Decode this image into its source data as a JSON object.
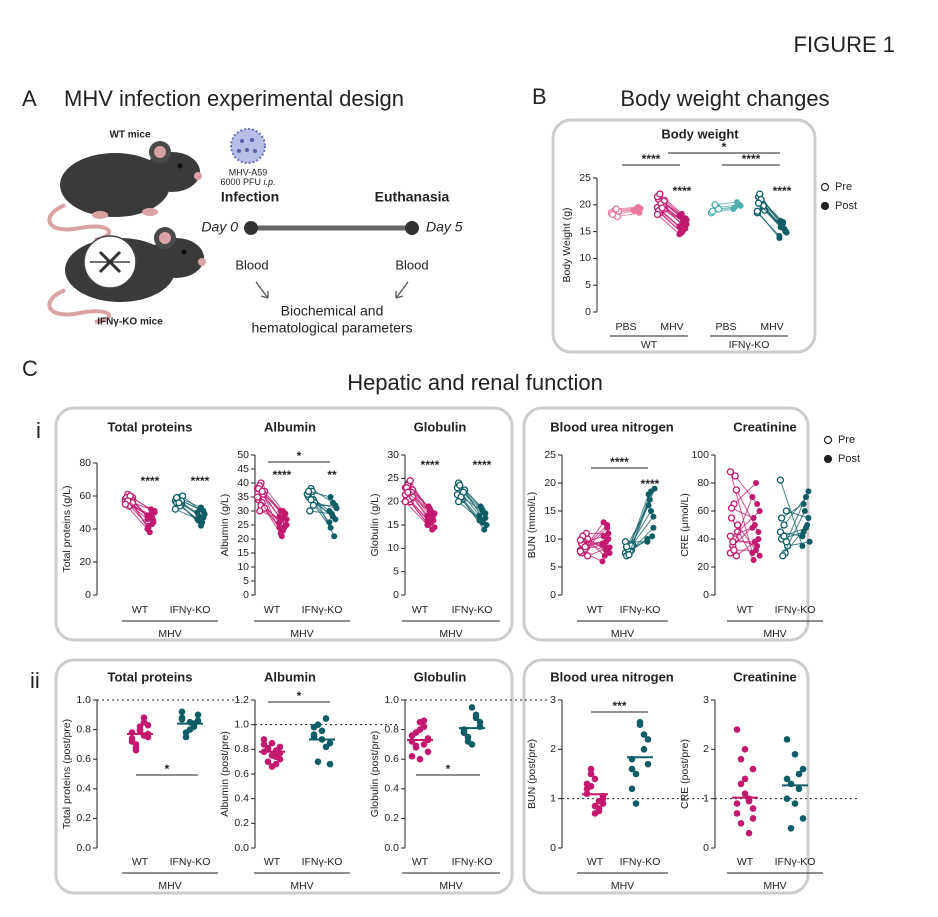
{
  "figure_label": "FIGURE 1",
  "panel_a": {
    "letter": "A",
    "title": "MHV infection experimental design",
    "wt_mice": "WT mice",
    "ko_mice": "IFNγ-KO mice",
    "virus": "MHV-A59",
    "dose": "6000 PFU",
    "route": "i.p.",
    "infection": "Infection",
    "euthanasia": "Euthanasia",
    "day0": "Day 0",
    "day5": "Day 5",
    "blood_start": "Blood",
    "blood_end": "Blood",
    "outcome_line1": "Biochemical and",
    "outcome_line2": "hematological parameters"
  },
  "panel_b": {
    "letter": "B",
    "title": "Body weight changes"
  },
  "panel_c": {
    "letter": "C",
    "title": "Hepatic and renal function",
    "sub_i": "i",
    "sub_ii": "ii",
    "legend": [
      "Pre",
      "Post"
    ]
  },
  "chart_data": [
    {
      "type": "paired",
      "title": "Body weight",
      "ylabel": "Body Weight (g)",
      "ylim": [
        0,
        25
      ],
      "yticks": [
        0,
        5,
        10,
        15,
        20,
        25
      ],
      "categories": [
        "PBS",
        "MHV",
        "PBS",
        "MHV"
      ],
      "supergroups": [
        "WT",
        "IFNγ-KO"
      ],
      "legend": [
        "Pre",
        "Post"
      ],
      "groups": [
        {
          "color": "#e8769f",
          "pre": [
            18.5,
            17.8,
            19.0,
            18.2,
            18.8,
            19.2
          ],
          "post": [
            19.0,
            18.5,
            19.4,
            18.8,
            19.3,
            19.6
          ]
        },
        {
          "color": "#c2186e",
          "pre": [
            19.5,
            20.5,
            18.8,
            21.0,
            19.2,
            20.0,
            18.5,
            21.5,
            19.8,
            20.2,
            18.9,
            20.8,
            19.4,
            22.0,
            18.2
          ],
          "post": [
            16.0,
            17.5,
            15.2,
            17.8,
            16.4,
            16.8,
            14.8,
            18.0,
            15.6,
            16.9,
            15.0,
            17.2,
            16.2,
            18.3,
            14.5
          ]
        },
        {
          "color": "#4fb0b0",
          "pre": [
            18.5,
            19.5,
            20.0,
            18.8,
            19.2
          ],
          "post": [
            19.2,
            20.0,
            20.5,
            19.5,
            19.8
          ]
        },
        {
          "color": "#0d5c66",
          "pre": [
            18.5,
            19.5,
            20.5,
            21.5,
            19.0,
            20.0,
            22.0,
            18.8,
            19.8,
            21.0,
            20.3
          ],
          "post": [
            14.2,
            15.0,
            16.5,
            17.0,
            14.8,
            15.5,
            16.0,
            13.8,
            15.2,
            16.8,
            15.8
          ]
        }
      ],
      "annotations": [
        "****",
        "*",
        "****",
        "****",
        "****"
      ]
    },
    {
      "type": "paired",
      "title": "Total proteins",
      "ylabel": "Total proteins (g/L)",
      "ylim": [
        0,
        80
      ],
      "yticks": [
        0,
        20,
        40,
        60,
        80
      ],
      "categories": [
        "WT",
        "IFNγ-KO"
      ],
      "group_label": "MHV",
      "groups": [
        {
          "color": "#c2186e",
          "pre": [
            58,
            57,
            60,
            56,
            59,
            55,
            61,
            57,
            58,
            54,
            59,
            56,
            60,
            57,
            55
          ],
          "post": [
            48,
            45,
            52,
            42,
            50,
            47,
            38,
            46,
            44,
            49,
            41,
            51,
            43,
            47,
            40
          ]
        },
        {
          "color": "#0d5c66",
          "pre": [
            57,
            55,
            59,
            56,
            60,
            54,
            58,
            52,
            57,
            56,
            59
          ],
          "post": [
            50,
            47,
            53,
            45,
            49,
            44,
            52,
            46,
            51,
            42,
            48
          ]
        }
      ],
      "annotations": [
        "****",
        "****"
      ]
    },
    {
      "type": "paired",
      "title": "Albumin",
      "ylabel": "Albumin (g/L)",
      "ylim": [
        0,
        50
      ],
      "yticks": [
        0,
        5,
        10,
        15,
        20,
        25,
        30,
        35,
        40,
        45,
        50
      ],
      "categories": [
        "WT",
        "IFNγ-KO"
      ],
      "group_label": "MHV",
      "groups": [
        {
          "color": "#c2186e",
          "pre": [
            38,
            36,
            40,
            34,
            37,
            33,
            39,
            35,
            36,
            32,
            38,
            31,
            37,
            30,
            35
          ],
          "post": [
            28,
            25,
            30,
            22,
            27,
            24,
            21,
            26,
            29,
            23,
            30,
            25,
            28,
            27,
            24
          ]
        },
        {
          "color": "#0d5c66",
          "pre": [
            36,
            34,
            38,
            35,
            33,
            37,
            30,
            36,
            32,
            34,
            37
          ],
          "post": [
            30,
            27,
            33,
            24,
            31,
            21,
            29,
            26,
            32,
            28,
            35
          ]
        }
      ],
      "annotations": [
        "****",
        "**",
        "*"
      ]
    },
    {
      "type": "paired",
      "title": "Globulin",
      "ylabel": "Globulin (g/L)",
      "ylim": [
        0,
        30
      ],
      "yticks": [
        0,
        5,
        10,
        15,
        20,
        25,
        30
      ],
      "categories": [
        "WT",
        "IFNγ-KO"
      ],
      "group_label": "MHV",
      "groups": [
        {
          "color": "#c2186e",
          "pre": [
            23,
            22,
            24,
            21,
            22.5,
            20,
            23.5,
            21.5,
            22,
            20.5,
            23,
            21,
            24.5,
            22,
            20
          ],
          "post": [
            17,
            16,
            18,
            15,
            17.5,
            14,
            18.5,
            16,
            17,
            15.5,
            19,
            14.5,
            16.5,
            17.8,
            15
          ]
        },
        {
          "color": "#0d5c66",
          "pre": [
            23,
            22,
            21,
            24,
            22.5,
            20.5,
            23.5,
            21.5,
            22,
            21,
            20
          ],
          "post": [
            17,
            16.5,
            18,
            19,
            15,
            14,
            18.5,
            16,
            17.5,
            15.5,
            16
          ]
        }
      ],
      "annotations": [
        "****",
        "****"
      ]
    },
    {
      "type": "paired",
      "title": "Blood urea nitrogen",
      "ylabel": "BUN (mmol/L)",
      "ylim": [
        0,
        25
      ],
      "yticks": [
        0,
        5,
        10,
        15,
        20,
        25
      ],
      "categories": [
        "WT",
        "IFNγ-KO"
      ],
      "group_label": "MHV",
      "groups": [
        {
          "color": "#c2186e",
          "pre": [
            8,
            8.5,
            9,
            7.5,
            10,
            8.2,
            9.5,
            7.8,
            11,
            8.8,
            9.2,
            7,
            8.6,
            10.5,
            9.8
          ],
          "post": [
            9,
            10,
            8,
            13,
            7.5,
            12,
            8.8,
            6,
            11,
            9.5,
            10.5,
            8.5,
            12.5,
            7,
            9.2
          ]
        },
        {
          "color": "#0d5c66",
          "pre": [
            7.5,
            8,
            8.5,
            7,
            9,
            7.8,
            8.2,
            9.5,
            8.8,
            7.2,
            8.6
          ],
          "post": [
            10,
            12,
            15,
            18,
            19,
            10.5,
            17,
            9.5,
            14,
            18.5,
            16
          ]
        }
      ],
      "annotations": [
        "****",
        "****"
      ]
    },
    {
      "type": "paired",
      "title": "Creatinine",
      "ylabel": "CRE (μmol/L)",
      "ylim": [
        0,
        100
      ],
      "yticks": [
        0,
        20,
        40,
        60,
        80,
        100
      ],
      "categories": [
        "WT",
        "IFNγ-KO"
      ],
      "group_label": "MHV",
      "groups": [
        {
          "color": "#c2186e",
          "pre": [
            88,
            75,
            65,
            55,
            45,
            40,
            35,
            30,
            28,
            32,
            62,
            50,
            85,
            38,
            42
          ],
          "post": [
            30,
            45,
            80,
            25,
            60,
            35,
            50,
            70,
            40,
            32,
            55,
            28,
            65,
            38,
            48
          ]
        },
        {
          "color": "#0d5c66",
          "pre": [
            82,
            60,
            50,
            40,
            35,
            30,
            28,
            45,
            38,
            42,
            55
          ],
          "post": [
            35,
            55,
            70,
            45,
            38,
            50,
            60,
            42,
            74,
            48,
            65
          ]
        }
      ]
    },
    {
      "type": "dot",
      "title": "Total proteins",
      "ylabel": "Total proteins (post/pre)",
      "ylim": [
        0,
        1
      ],
      "yticks": [
        {
          "value": 0,
          "label": "0.0"
        },
        0.2,
        0.4,
        0.6,
        0.8,
        {
          "value": 1,
          "label": "1.0"
        }
      ],
      "reference": 1,
      "categories": [
        "WT",
        "IFNγ-KO"
      ],
      "group_label": "MHV",
      "groups": [
        {
          "color": "#c2186e",
          "values": [
            0.78,
            0.82,
            0.75,
            0.68,
            0.85,
            0.72,
            0.8,
            0.77,
            0.7,
            0.88,
            0.74,
            0.79,
            0.83,
            0.66,
            0.76
          ],
          "mean": 0.77
        },
        {
          "color": "#0d5c66",
          "values": [
            0.88,
            0.85,
            0.9,
            0.78,
            0.82,
            0.92,
            0.8,
            0.86,
            0.75,
            0.84,
            0.87
          ],
          "mean": 0.84
        }
      ],
      "annotations": [
        "*"
      ]
    },
    {
      "type": "dot",
      "title": "Albumin",
      "ylabel": "Albumin (post/pre)",
      "ylim": [
        0,
        1.2
      ],
      "yticks": [
        {
          "value": 0,
          "label": "0.0"
        },
        0.2,
        0.4,
        0.6,
        0.8,
        {
          "value": 1,
          "label": "1.0"
        },
        1.2
      ],
      "reference": 1,
      "categories": [
        "WT",
        "IFNγ-KO"
      ],
      "group_label": "MHV",
      "groups": [
        {
          "color": "#c2186e",
          "values": [
            0.78,
            0.85,
            0.72,
            0.8,
            0.68,
            0.88,
            0.75,
            0.82,
            0.7,
            0.79,
            0.84,
            0.66,
            0.77,
            0.81,
            0.74
          ],
          "mean": 0.78
        },
        {
          "color": "#0d5c66",
          "values": [
            0.9,
            0.95,
            0.85,
            0.7,
            1.05,
            0.92,
            0.88,
            0.68,
            1.0,
            0.82,
            0.98
          ],
          "mean": 0.88
        }
      ],
      "annotations": [
        "*"
      ]
    },
    {
      "type": "dot",
      "title": "Globulin",
      "ylabel": "Globulin (post/pre)",
      "ylim": [
        0,
        1
      ],
      "yticks": [
        {
          "value": 0,
          "label": "0.0"
        },
        0.2,
        0.4,
        0.6,
        0.8,
        {
          "value": 1,
          "label": "1.0"
        }
      ],
      "reference": 1,
      "categories": [
        "WT",
        "IFNγ-KO"
      ],
      "group_label": "MHV",
      "groups": [
        {
          "color": "#c2186e",
          "values": [
            0.72,
            0.85,
            0.65,
            0.78,
            0.7,
            0.62,
            0.8,
            0.74,
            0.68,
            0.86,
            0.76,
            0.6,
            0.73,
            0.69,
            0.82
          ],
          "mean": 0.73
        },
        {
          "color": "#0d5c66",
          "values": [
            0.8,
            0.95,
            0.85,
            0.72,
            0.88,
            0.78,
            0.7,
            0.82,
            0.75,
            0.9,
            0.78
          ],
          "mean": 0.81
        }
      ],
      "annotations": [
        "*"
      ]
    },
    {
      "type": "dot",
      "title": "Blood urea nitrogen",
      "ylabel": "BUN (post/pre)",
      "ylim": [
        0,
        3
      ],
      "yticks": [
        0,
        1,
        2,
        3
      ],
      "reference": 1,
      "categories": [
        "WT",
        "IFNγ-KO"
      ],
      "group_label": "MHV",
      "groups": [
        {
          "color": "#c2186e",
          "values": [
            1.1,
            1.4,
            0.9,
            1.6,
            0.8,
            1.2,
            0.7,
            1.0,
            1.5,
            0.95,
            1.3,
            0.85,
            1.05,
            1.25,
            0.75
          ],
          "mean": 1.09
        },
        {
          "color": "#0d5c66",
          "values": [
            1.8,
            2.5,
            2.2,
            1.5,
            2.0,
            1.2,
            2.55,
            1.7,
            0.9,
            2.3,
            1.6
          ],
          "mean": 1.84
        }
      ],
      "annotations": [
        "***"
      ]
    },
    {
      "type": "dot",
      "title": "Creatinine",
      "ylabel": "CRE (post/pre)",
      "ylim": [
        0,
        3
      ],
      "yticks": [
        0,
        1,
        2,
        3
      ],
      "reference": 1,
      "categories": [
        "WT",
        "IFNγ-KO"
      ],
      "group_label": "MHV",
      "groups": [
        {
          "color": "#c2186e",
          "values": [
            2.4,
            2.0,
            1.6,
            1.3,
            1.0,
            0.9,
            1.1,
            0.8,
            0.5,
            0.3,
            0.7,
            1.4,
            0.6,
            1.8,
            0.95
          ],
          "mean": 1.02
        },
        {
          "color": "#0d5c66",
          "values": [
            2.2,
            1.9,
            1.6,
            1.3,
            1.2,
            1.0,
            0.9,
            0.6,
            0.4,
            1.5,
            1.4
          ],
          "mean": 1.27
        }
      ]
    }
  ]
}
